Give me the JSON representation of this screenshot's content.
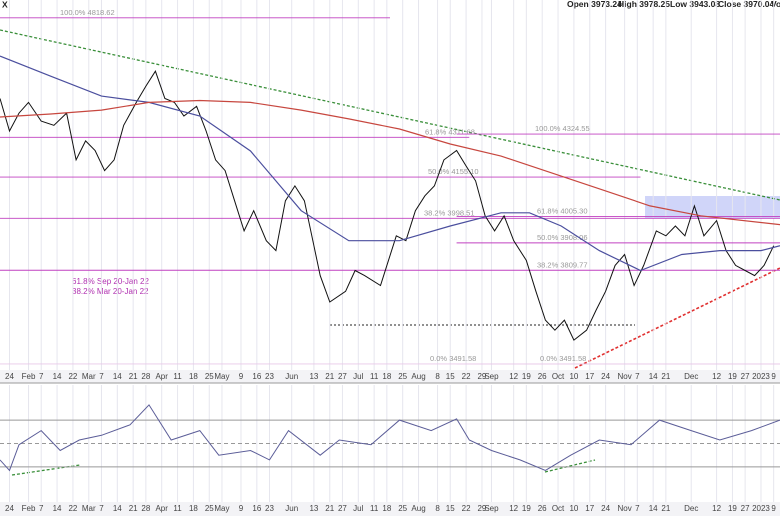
{
  "chart_data": {
    "type": "line",
    "symbol": "X",
    "header": [
      {
        "label": "Open",
        "value": 3973.24
      },
      {
        "label": "High",
        "value": 3978.25
      },
      {
        "label": "Low",
        "value": 3943.08
      },
      {
        "label": "Close",
        "value": 3970.04
      },
      {
        "label": "Volum"
      }
    ],
    "log_scale": true,
    "grid": true,
    "xlim": [
      0,
      246
    ],
    "ylim": [
      3472,
      4863
    ],
    "xticks": [
      {
        "value": 3,
        "label": "24"
      },
      {
        "value": 9,
        "label": "Feb"
      },
      {
        "value": 13,
        "label": "7"
      },
      {
        "value": 18,
        "label": "14"
      },
      {
        "value": 23,
        "label": "22"
      },
      {
        "value": 28,
        "label": "Mar"
      },
      {
        "value": 32,
        "label": "7"
      },
      {
        "value": 37,
        "label": "14"
      },
      {
        "value": 42,
        "label": "21"
      },
      {
        "value": 46,
        "label": "28"
      },
      {
        "value": 51,
        "label": "Apr"
      },
      {
        "value": 56,
        "label": "11"
      },
      {
        "value": 61,
        "label": "18"
      },
      {
        "value": 66,
        "label": "25"
      },
      {
        "value": 70,
        "label": "May"
      },
      {
        "value": 76,
        "label": "9"
      },
      {
        "value": 81,
        "label": "16"
      },
      {
        "value": 85,
        "label": "23"
      },
      {
        "value": 92,
        "label": "Jun"
      },
      {
        "value": 99,
        "label": "13"
      },
      {
        "value": 104,
        "label": "21"
      },
      {
        "value": 108,
        "label": "27"
      },
      {
        "value": 113,
        "label": "Jul"
      },
      {
        "value": 118,
        "label": "11"
      },
      {
        "value": 122,
        "label": "18"
      },
      {
        "value": 127,
        "label": "25"
      },
      {
        "value": 132,
        "label": "Aug"
      },
      {
        "value": 138,
        "label": "8"
      },
      {
        "value": 142,
        "label": "15"
      },
      {
        "value": 147,
        "label": "22"
      },
      {
        "value": 152,
        "label": "29"
      },
      {
        "value": 155,
        "label": "Sep"
      },
      {
        "value": 162,
        "label": "12"
      },
      {
        "value": 166,
        "label": "19"
      },
      {
        "value": 171,
        "label": "26"
      },
      {
        "value": 176,
        "label": "Oct"
      },
      {
        "value": 181,
        "label": "10"
      },
      {
        "value": 186,
        "label": "17"
      },
      {
        "value": 191,
        "label": "24"
      },
      {
        "value": 197,
        "label": "Nov"
      },
      {
        "value": 201,
        "label": "7"
      },
      {
        "value": 206,
        "label": "14"
      },
      {
        "value": 210,
        "label": "21"
      },
      {
        "value": 218,
        "label": "Dec"
      },
      {
        "value": 226,
        "label": "12"
      },
      {
        "value": 231,
        "label": "19"
      },
      {
        "value": 235,
        "label": "27"
      },
      {
        "value": 240,
        "label": "2023"
      },
      {
        "value": 244,
        "label": "9"
      }
    ],
    "series": [
      {
        "color": "#111111",
        "x": [
          0,
          3,
          6,
          9,
          13,
          17,
          21,
          24,
          27,
          30,
          33,
          36,
          39,
          43,
          46,
          49,
          52,
          55,
          58,
          62,
          65,
          68,
          71,
          74,
          77,
          80,
          84,
          87,
          90,
          93,
          96,
          99,
          101,
          104,
          109,
          112,
          115,
          120,
          125,
          128,
          131,
          134,
          137,
          140,
          144,
          147,
          150,
          153,
          156,
          159,
          162,
          166,
          169,
          172,
          175,
          178,
          181,
          185,
          188,
          191,
          194,
          197,
          200,
          203,
          207,
          210,
          213,
          216,
          219,
          222,
          226,
          229,
          232,
          235,
          238,
          241,
          244
        ],
        "values": [
          4470,
          4337,
          4410,
          4454,
          4377,
          4360,
          4410,
          4222,
          4297,
          4259,
          4180,
          4222,
          4360,
          4454,
          4522,
          4585,
          4470,
          4454,
          4398,
          4438,
          4337,
          4222,
          4180,
          4064,
          3952,
          4027,
          3916,
          3880,
          4064,
          4121,
          4064,
          3898,
          3791,
          3699,
          3736,
          3809,
          3791,
          3756,
          3934,
          3916,
          4027,
          4083,
          4121,
          4222,
          4259,
          4198,
          4140,
          4008,
          3952,
          4008,
          3916,
          3845,
          3736,
          3637,
          3603,
          3637,
          3570,
          3603,
          3671,
          3736,
          3827,
          3866,
          3756,
          3827,
          3952,
          3934,
          3970,
          3934,
          4045,
          3934,
          3990,
          3880,
          3827,
          3809,
          3791,
          3827,
          3898
        ]
      },
      {
        "color": "#4b4f9e",
        "x": [
          0,
          16,
          32,
          47,
          63,
          79,
          95,
          110,
          126,
          142,
          158,
          167,
          177,
          189,
          202,
          215,
          227,
          240,
          246
        ],
        "values": [
          4650,
          4564,
          4480,
          4454,
          4398,
          4257,
          4027,
          3916,
          3916,
          3970,
          4019,
          4019,
          3970,
          3880,
          3809,
          3866,
          3880,
          3880,
          3898
        ]
      },
      {
        "color": "#c7473f",
        "x": [
          0,
          16,
          32,
          47,
          63,
          79,
          95,
          110,
          126,
          142,
          158,
          174,
          189,
          205,
          221,
          246
        ],
        "values": [
          4394,
          4406,
          4422,
          4454,
          4462,
          4454,
          4422,
          4386,
          4345,
          4285,
          4237,
          4171,
          4110,
          4045,
          4008,
          3975
        ]
      }
    ],
    "levels": [
      {
        "label": "100.0%",
        "value": 4818.62,
        "from": 0,
        "to": 123
      },
      {
        "label": "61.8%",
        "value": 4311.68,
        "from": 0,
        "to": 148
      },
      {
        "label": "50.0%",
        "value": 4155.1,
        "value_label": "4155.10",
        "from": 0,
        "to": 202
      },
      {
        "label": "38.2%",
        "value": 3998.51,
        "from": 0,
        "to": 246
      },
      {
        "label": "0.0%",
        "value": 3491.58,
        "from": 0,
        "to": 246
      },
      {
        "label": "100.0%",
        "value": 4324.55,
        "from": 144,
        "to": 246
      },
      {
        "label": "61.8%",
        "value": 4005.3,
        "value_label": "4005.30",
        "from": 144,
        "to": 246
      },
      {
        "label": "50.0%",
        "value": 3908.06,
        "from": 144,
        "to": 246
      },
      {
        "label": "38.2%",
        "value": 3809.77,
        "from": 0,
        "to": 246
      },
      {
        "label": "0.0%",
        "value": 3491.58,
        "from": 144,
        "to": 246
      }
    ],
    "annotations": [
      "61.8% Sep 20-Jan 22",
      "38.2% Mar 20-Jan 22"
    ],
    "rsi": {
      "color": "#5b5d98",
      "ylim": [
        0,
        100
      ],
      "levels": [
        70,
        50,
        30
      ],
      "x": [
        0,
        3,
        6,
        13,
        19,
        25,
        32,
        41,
        47,
        54,
        63,
        69,
        79,
        85,
        91,
        101,
        107,
        117,
        126,
        136,
        144,
        148,
        155,
        164,
        172,
        180,
        189,
        199,
        208,
        218,
        227,
        237,
        246
      ],
      "values": [
        36,
        27,
        49,
        61,
        44,
        53,
        57,
        66,
        83,
        53,
        61,
        40,
        44,
        36,
        61,
        40,
        53,
        49,
        70,
        61,
        71,
        53,
        44,
        36,
        27,
        40,
        53,
        49,
        70,
        61,
        53,
        61,
        70
      ]
    }
  }
}
